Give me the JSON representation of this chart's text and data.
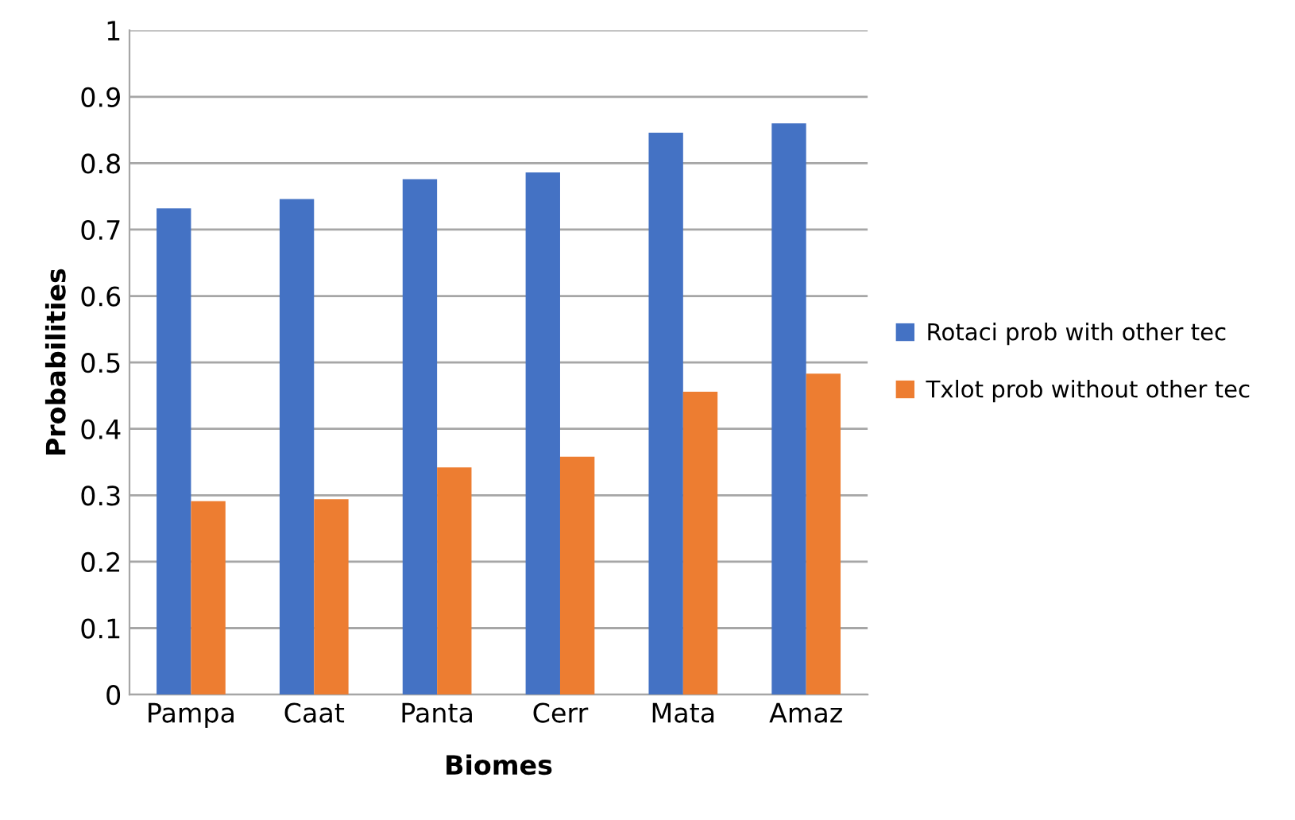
{
  "chart_data": {
    "type": "bar",
    "xlabel": "Biomes",
    "ylabel": "Probabilities",
    "categories": [
      "Pampa",
      "Caat",
      "Panta",
      "Cerr",
      "Mata",
      "Amaz"
    ],
    "series": [
      {
        "name": "Rotaci prob with other tec",
        "color": "#4472c4",
        "values": [
          0.732,
          0.746,
          0.776,
          0.786,
          0.846,
          0.86
        ]
      },
      {
        "name": "Txlot prob without other tec",
        "color": "#ed7d31",
        "values": [
          0.291,
          0.294,
          0.342,
          0.358,
          0.456,
          0.483
        ]
      }
    ],
    "ylim": [
      0,
      1
    ],
    "yticks": [
      0,
      0.1,
      0.2,
      0.3,
      0.4,
      0.5,
      0.6,
      0.7,
      0.8,
      0.9,
      1
    ],
    "grid": "y",
    "legend": "right"
  }
}
